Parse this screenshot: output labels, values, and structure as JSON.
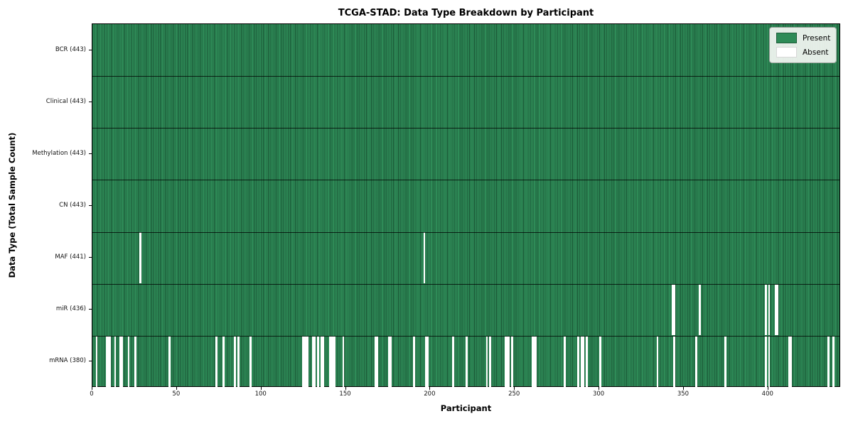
{
  "chart_data": {
    "type": "heatmap",
    "title": "TCGA-STAD: Data Type Breakdown by Participant",
    "xlabel": "Participant",
    "ylabel": "Data Type (Total Sample Count)",
    "n_participants": 443,
    "x_ticks": [
      0,
      50,
      100,
      150,
      200,
      250,
      300,
      350,
      400
    ],
    "legend": [
      {
        "label": "Present",
        "color": "#2e8b57"
      },
      {
        "label": "Absent",
        "color": "#ffffff"
      }
    ],
    "rows": [
      {
        "label": "BCR (443)",
        "name": "BCR",
        "present_count": 443,
        "absent_participants": []
      },
      {
        "label": "Clinical (443)",
        "name": "Clinical",
        "present_count": 443,
        "absent_participants": []
      },
      {
        "label": "Methylation (443)",
        "name": "Methylation",
        "present_count": 443,
        "absent_participants": []
      },
      {
        "label": "CN (443)",
        "name": "CN",
        "present_count": 443,
        "absent_participants": []
      },
      {
        "label": "MAF (441)",
        "name": "MAF",
        "present_count": 441,
        "absent_participants": [
          28,
          196
        ]
      },
      {
        "label": "miR (436)",
        "name": "miR",
        "present_count": 436,
        "absent_participants": [
          343,
          344,
          359,
          398,
          400,
          404,
          405
        ]
      },
      {
        "label": "mRNA (380)",
        "name": "mRNA",
        "present_count": 380,
        "absent_participants": [
          2,
          8,
          9,
          10,
          13,
          16,
          17,
          21,
          25,
          45,
          73,
          77,
          84,
          86,
          93,
          124,
          125,
          126,
          127,
          130,
          131,
          133,
          135,
          136,
          140,
          141,
          142,
          143,
          148,
          167,
          168,
          175,
          176,
          190,
          197,
          198,
          213,
          221,
          233,
          235,
          244,
          245,
          246,
          248,
          260,
          261,
          262,
          279,
          287,
          289,
          290,
          292,
          300,
          334,
          344,
          357,
          374,
          398,
          400,
          412,
          413,
          435,
          438
        ]
      }
    ],
    "colors": {
      "present": "#2e8b57",
      "absent": "#ffffff",
      "cell_edge": "rgba(8,38,24,0.55)",
      "row_separator": "rgba(0,0,0,0.75)",
      "axis": "#000000",
      "figure_background": "#ffffff"
    },
    "layout": {
      "grid": "cell-edges",
      "legend_position": "upper right"
    }
  }
}
